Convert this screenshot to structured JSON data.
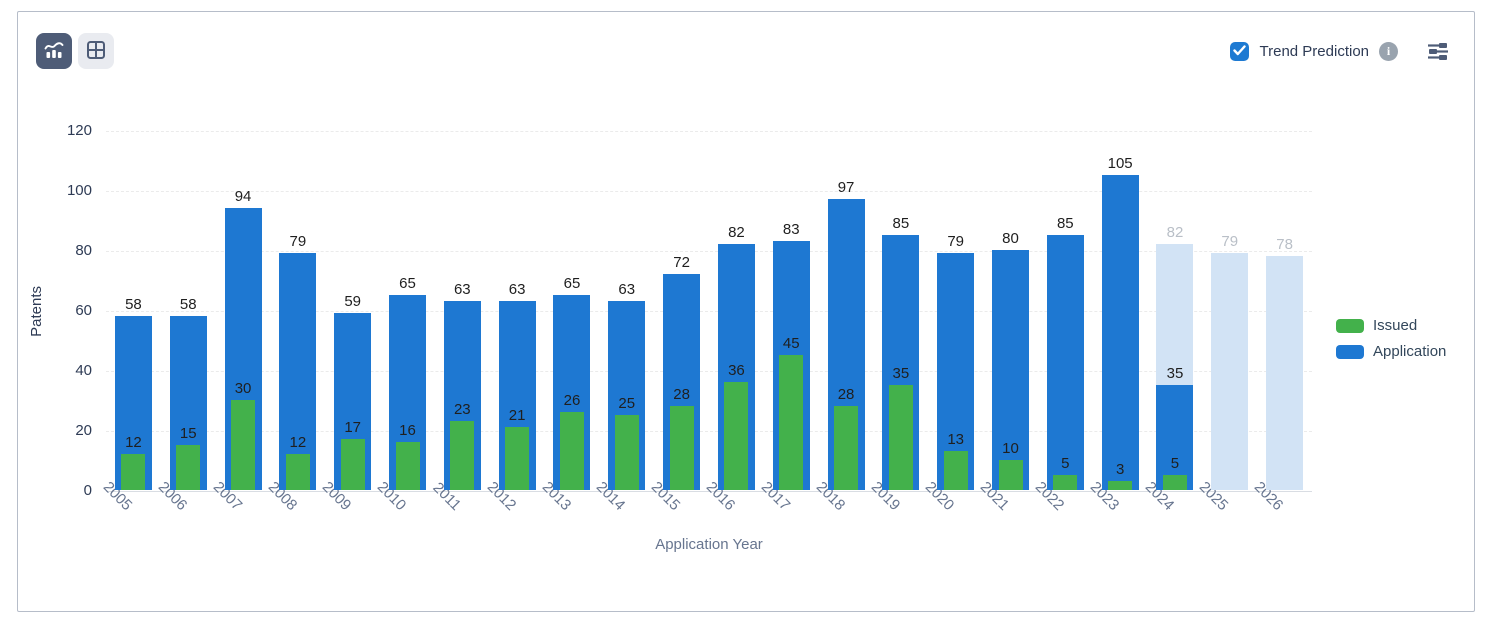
{
  "toolbar": {
    "chart_view_icon": "bar-chart-trend-icon",
    "table_view_icon": "table-grid-icon"
  },
  "controls": {
    "trend_prediction_label": "Trend Prediction",
    "trend_prediction_checked": true,
    "info_icon": "info-circle-icon",
    "settings_icon": "sliders-icon"
  },
  "colors": {
    "application_blue": "#1e78d2",
    "issued_green": "#43b14b",
    "prediction_light_blue": "#d2e3f5",
    "value_label": "#1f1f1f",
    "prediction_label": "#b9bfc7",
    "accent_checkbox": "#1e7ad2"
  },
  "chart_data": {
    "type": "bar",
    "title": "",
    "xlabel": "Application Year",
    "ylabel": "Patents",
    "ylim": [
      0,
      120
    ],
    "yticks": [
      0,
      20,
      40,
      60,
      80,
      100,
      120
    ],
    "grid": true,
    "legend_position": "right",
    "categories": [
      "2005",
      "2006",
      "2007",
      "2008",
      "2009",
      "2010",
      "2011",
      "2012",
      "2013",
      "2014",
      "2015",
      "2016",
      "2017",
      "2018",
      "2019",
      "2020",
      "2021",
      "2022",
      "2023",
      "2024",
      "2025",
      "2026"
    ],
    "series": [
      {
        "name": "Prediction",
        "color": "#d2e3f5",
        "label_color": "#b9bfc7",
        "values": [
          null,
          null,
          null,
          null,
          null,
          null,
          null,
          null,
          null,
          null,
          null,
          null,
          null,
          null,
          null,
          null,
          null,
          null,
          null,
          82,
          79,
          78
        ]
      },
      {
        "name": "Application",
        "color": "#1e78d2",
        "label_color": "#1f1f1f",
        "values": [
          58,
          58,
          94,
          79,
          59,
          65,
          63,
          63,
          65,
          63,
          72,
          82,
          83,
          97,
          85,
          79,
          80,
          85,
          105,
          35,
          null,
          null
        ]
      },
      {
        "name": "Issued",
        "color": "#43b14b",
        "label_color": "#1f1f1f",
        "values": [
          12,
          15,
          30,
          12,
          17,
          16,
          23,
          21,
          26,
          25,
          28,
          36,
          45,
          28,
          35,
          13,
          10,
          5,
          3,
          5,
          null,
          null
        ]
      }
    ],
    "legend": [
      {
        "label": "Issued",
        "color": "#43b14b"
      },
      {
        "label": "Application",
        "color": "#1e78d2"
      }
    ]
  }
}
